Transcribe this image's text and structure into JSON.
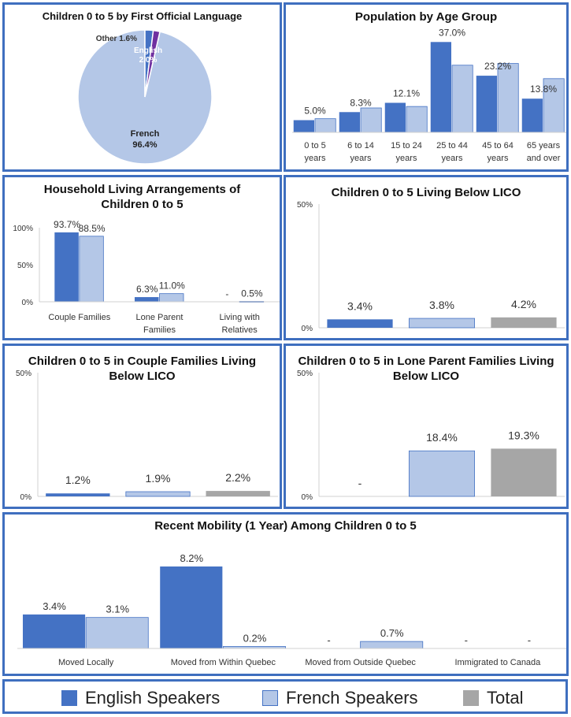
{
  "colors": {
    "english": "#4472c4",
    "french": "#b4c7e7",
    "total": "#a6a6a6",
    "border": "#3f6fbf",
    "other_slice": "#7030a0",
    "english_slice": "#4472c4"
  },
  "legend": {
    "items": [
      {
        "label": "English Speakers",
        "color": "#4472c4"
      },
      {
        "label": "French Speakers",
        "color": "#b4c7e7"
      },
      {
        "label": "Total",
        "color": "#a6a6a6"
      }
    ]
  },
  "chart_data": [
    {
      "id": "language",
      "type": "pie",
      "title": "Children 0 to 5 by First Official Language",
      "slices": [
        {
          "label": "French",
          "value": 96.4,
          "value_label": "96.4%",
          "color": "#b4c7e7"
        },
        {
          "label": "English",
          "value": 2.0,
          "value_label": "2.0%",
          "color": "#4472c4"
        },
        {
          "label": "Other",
          "value": 1.6,
          "value_label": "1.6%",
          "color": "#7030a0"
        }
      ]
    },
    {
      "id": "age",
      "type": "bar",
      "title": "Population by Age Group",
      "categories": [
        [
          "0 to 5",
          "years"
        ],
        [
          "6 to 14",
          "years"
        ],
        [
          "15 to 24",
          "years"
        ],
        [
          "25 to 44",
          "years"
        ],
        [
          "45 to 64",
          "years"
        ],
        [
          "65 years",
          "and over"
        ]
      ],
      "series": [
        {
          "name": "English Speakers",
          "color": "#4472c4",
          "values": [
            5.0,
            8.3,
            12.1,
            37.0,
            23.2,
            13.8
          ]
        },
        {
          "name": "French Speakers",
          "color": "#b4c7e7",
          "values": [
            5.6,
            10.0,
            10.6,
            27.5,
            28.2,
            22.0
          ]
        }
      ],
      "data_labels": [
        "5.0%",
        "8.3%",
        "12.1%",
        "37.0%",
        "23.2%",
        "13.8%"
      ],
      "ylim": [
        0,
        40
      ]
    },
    {
      "id": "household",
      "type": "bar",
      "title": "Household Living Arrangements of Children 0 to 5",
      "categories": [
        [
          "Couple Families"
        ],
        [
          "Lone Parent",
          "Families"
        ],
        [
          "Living with",
          "Relatives"
        ]
      ],
      "series": [
        {
          "name": "English Speakers",
          "color": "#4472c4",
          "values": [
            93.7,
            6.3,
            0
          ],
          "labels": [
            "93.7%",
            "6.3%",
            "-"
          ]
        },
        {
          "name": "French Speakers",
          "color": "#b4c7e7",
          "values": [
            88.5,
            11.0,
            0.5
          ],
          "labels": [
            "88.5%",
            "11.0%",
            "0.5%"
          ]
        }
      ],
      "yticks": [
        "100%",
        "50%",
        "0%"
      ],
      "ylim": [
        0,
        100
      ]
    },
    {
      "id": "lico",
      "type": "bar",
      "title": "Children 0 to 5 Living Below LICO",
      "categories": [
        "English Speakers",
        "French Speakers",
        "Total"
      ],
      "values": [
        3.4,
        3.8,
        4.2
      ],
      "labels": [
        "3.4%",
        "3.8%",
        "4.2%"
      ],
      "colors": [
        "#4472c4",
        "#b4c7e7",
        "#a6a6a6"
      ],
      "yticks": [
        "50%",
        "0%"
      ],
      "ylim": [
        0,
        50
      ]
    },
    {
      "id": "couple_lico",
      "type": "bar",
      "title": "Children 0 to 5 in Couple Families Living Below LICO",
      "categories": [
        "English Speakers",
        "French Speakers",
        "Total"
      ],
      "values": [
        1.2,
        1.9,
        2.2
      ],
      "labels": [
        "1.2%",
        "1.9%",
        "2.2%"
      ],
      "colors": [
        "#4472c4",
        "#b4c7e7",
        "#a6a6a6"
      ],
      "yticks": [
        "50%",
        "0%"
      ],
      "ylim": [
        0,
        50
      ]
    },
    {
      "id": "lone_lico",
      "type": "bar",
      "title": "Children 0 to 5 in Lone Parent Families Living Below LICO",
      "categories": [
        "English Speakers",
        "French Speakers",
        "Total"
      ],
      "values": [
        0,
        18.4,
        19.3
      ],
      "labels": [
        "-",
        "18.4%",
        "19.3%"
      ],
      "colors": [
        "#4472c4",
        "#b4c7e7",
        "#a6a6a6"
      ],
      "yticks": [
        "50%",
        "0%"
      ],
      "ylim": [
        0,
        50
      ]
    },
    {
      "id": "mobility",
      "type": "bar",
      "title": "Recent Mobility (1 Year) Among Children 0 to 5",
      "categories": [
        [
          "Moved Locally"
        ],
        [
          "Moved from Within Quebec"
        ],
        [
          "Moved from Outside Quebec"
        ],
        [
          "Immigrated to Canada"
        ]
      ],
      "series": [
        {
          "name": "English Speakers",
          "color": "#4472c4",
          "values": [
            3.4,
            8.2,
            0,
            0
          ],
          "labels": [
            "3.4%",
            "8.2%",
            "-",
            "-"
          ]
        },
        {
          "name": "French Speakers",
          "color": "#b4c7e7",
          "values": [
            3.1,
            0.2,
            0.7,
            0
          ],
          "labels": [
            "3.1%",
            "0.2%",
            "0.7%",
            "-"
          ]
        }
      ],
      "ylim": [
        0,
        9.3
      ]
    }
  ]
}
